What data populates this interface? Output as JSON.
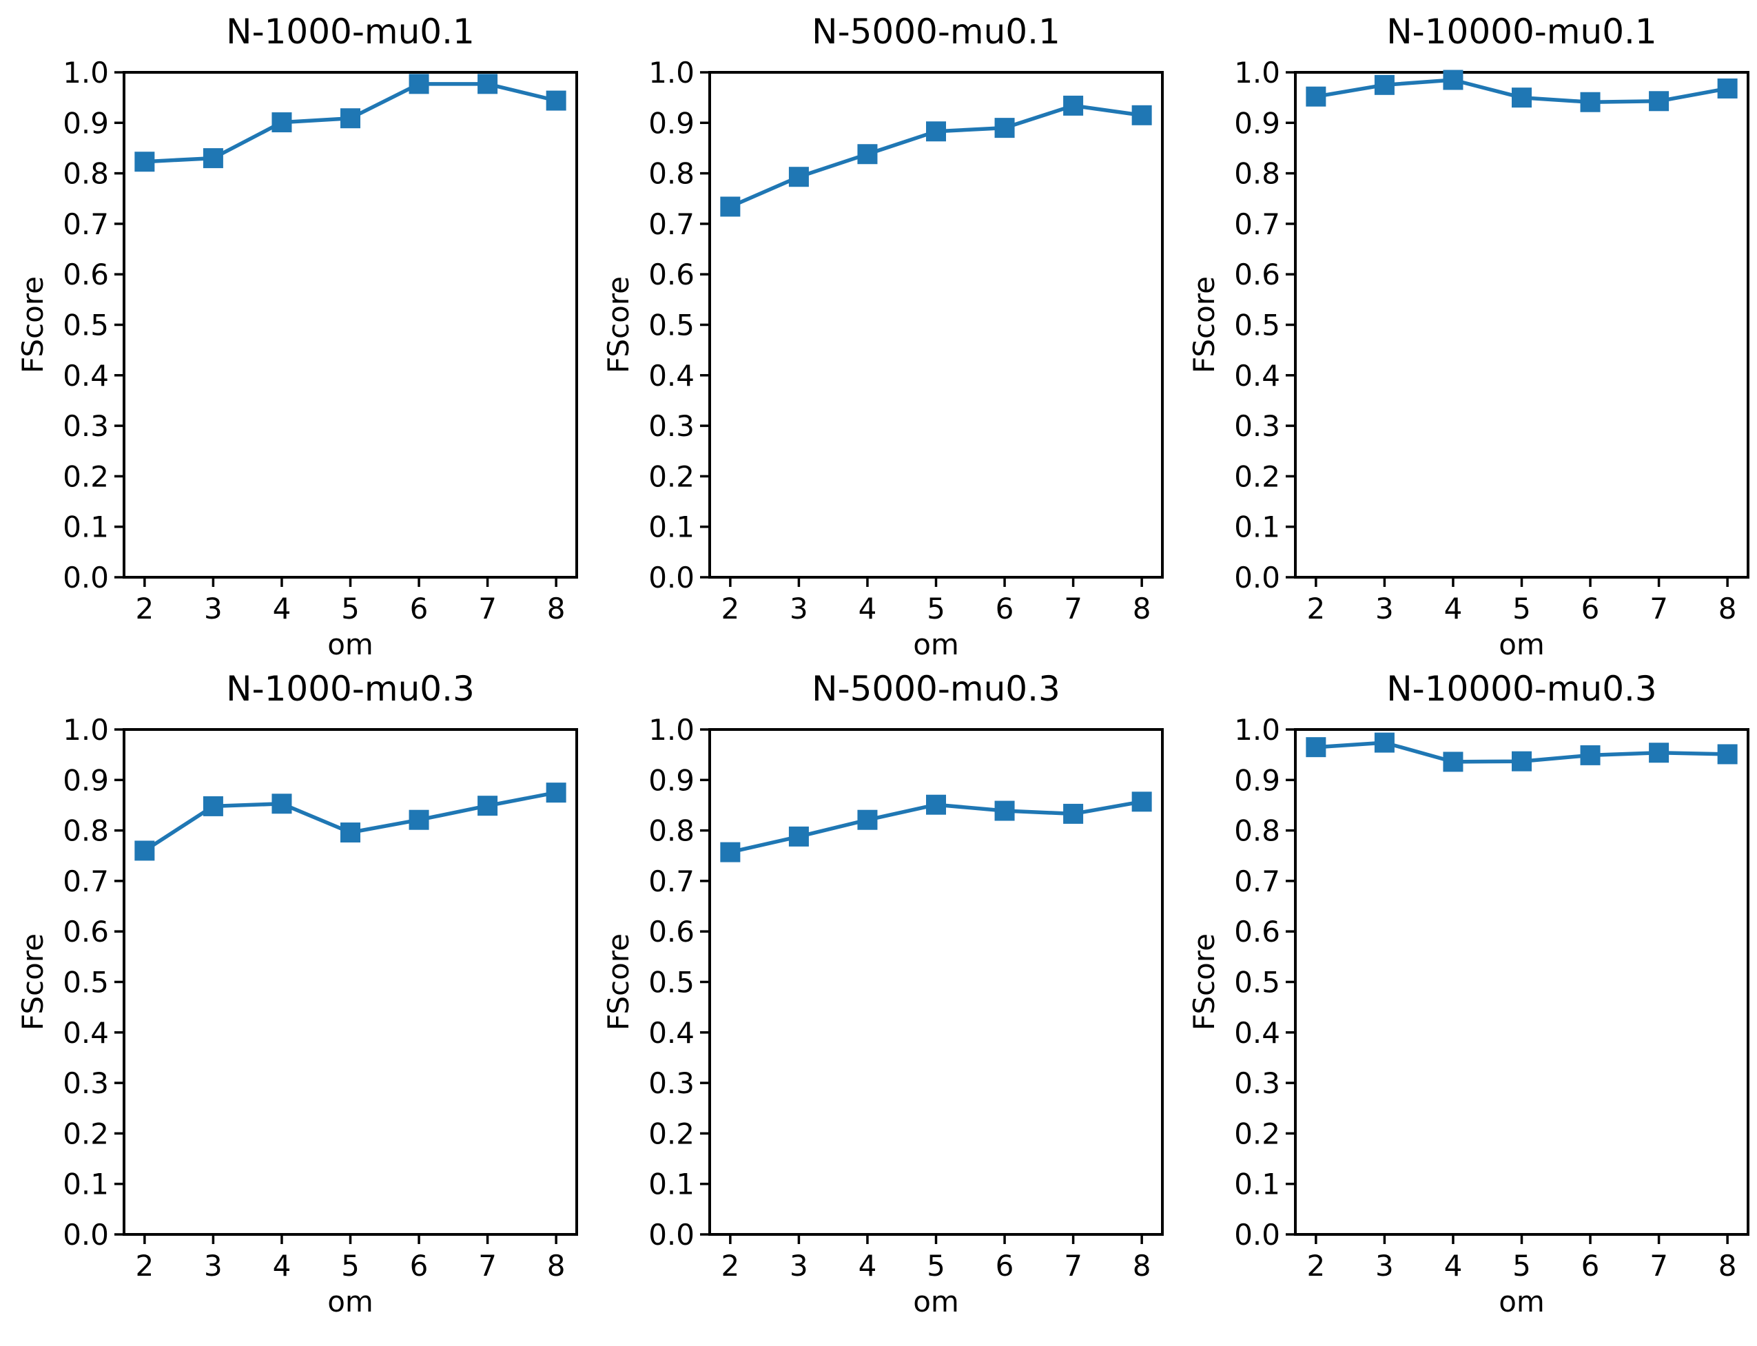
{
  "figure": {
    "background": "#ffffff",
    "accent_color": "#1f77b4",
    "axis_color": "#000000",
    "y_tick_labels": [
      "0.0",
      "0.1",
      "0.2",
      "0.3",
      "0.4",
      "0.5",
      "0.6",
      "0.7",
      "0.8",
      "0.9",
      "1.0"
    ],
    "x_tick_labels": [
      "2",
      "3",
      "4",
      "5",
      "6",
      "7",
      "8"
    ],
    "rows": 2,
    "cols": 3
  },
  "chart_data": [
    {
      "type": "line",
      "title": "N-1000-mu0.1",
      "xlabel": "om",
      "ylabel": "FScore",
      "marker": "square",
      "color": "#1f77b4",
      "xlim": [
        1.7,
        8.3
      ],
      "ylim": [
        0.0,
        1.0
      ],
      "x": [
        2,
        3,
        4,
        5,
        6,
        7,
        8
      ],
      "y": [
        0.823,
        0.83,
        0.901,
        0.909,
        0.977,
        0.977,
        0.944
      ]
    },
    {
      "type": "line",
      "title": "N-5000-mu0.1",
      "xlabel": "om",
      "ylabel": "FScore",
      "marker": "square",
      "color": "#1f77b4",
      "xlim": [
        1.7,
        8.3
      ],
      "ylim": [
        0.0,
        1.0
      ],
      "x": [
        2,
        3,
        4,
        5,
        6,
        7,
        8
      ],
      "y": [
        0.734,
        0.793,
        0.838,
        0.883,
        0.89,
        0.934,
        0.915
      ]
    },
    {
      "type": "line",
      "title": "N-10000-mu0.1",
      "xlabel": "om",
      "ylabel": "FScore",
      "marker": "square",
      "color": "#1f77b4",
      "xlim": [
        1.7,
        8.3
      ],
      "ylim": [
        0.0,
        1.0
      ],
      "x": [
        2,
        3,
        4,
        5,
        6,
        7,
        8
      ],
      "y": [
        0.952,
        0.975,
        0.985,
        0.95,
        0.941,
        0.943,
        0.968
      ]
    },
    {
      "type": "line",
      "title": "N-1000-mu0.3",
      "xlabel": "om",
      "ylabel": "FScore",
      "marker": "square",
      "color": "#1f77b4",
      "xlim": [
        1.7,
        8.3
      ],
      "ylim": [
        0.0,
        1.0
      ],
      "x": [
        2,
        3,
        4,
        5,
        6,
        7,
        8
      ],
      "y": [
        0.76,
        0.848,
        0.853,
        0.796,
        0.821,
        0.849,
        0.875
      ]
    },
    {
      "type": "line",
      "title": "N-5000-mu0.3",
      "xlabel": "om",
      "ylabel": "FScore",
      "marker": "square",
      "color": "#1f77b4",
      "xlim": [
        1.7,
        8.3
      ],
      "ylim": [
        0.0,
        1.0
      ],
      "x": [
        2,
        3,
        4,
        5,
        6,
        7,
        8
      ],
      "y": [
        0.757,
        0.788,
        0.821,
        0.851,
        0.839,
        0.833,
        0.857
      ]
    },
    {
      "type": "line",
      "title": "N-10000-mu0.3",
      "xlabel": "om",
      "ylabel": "FScore",
      "marker": "square",
      "color": "#1f77b4",
      "xlim": [
        1.7,
        8.3
      ],
      "ylim": [
        0.0,
        1.0
      ],
      "x": [
        2,
        3,
        4,
        5,
        6,
        7,
        8
      ],
      "y": [
        0.965,
        0.974,
        0.936,
        0.937,
        0.949,
        0.954,
        0.951
      ]
    }
  ]
}
